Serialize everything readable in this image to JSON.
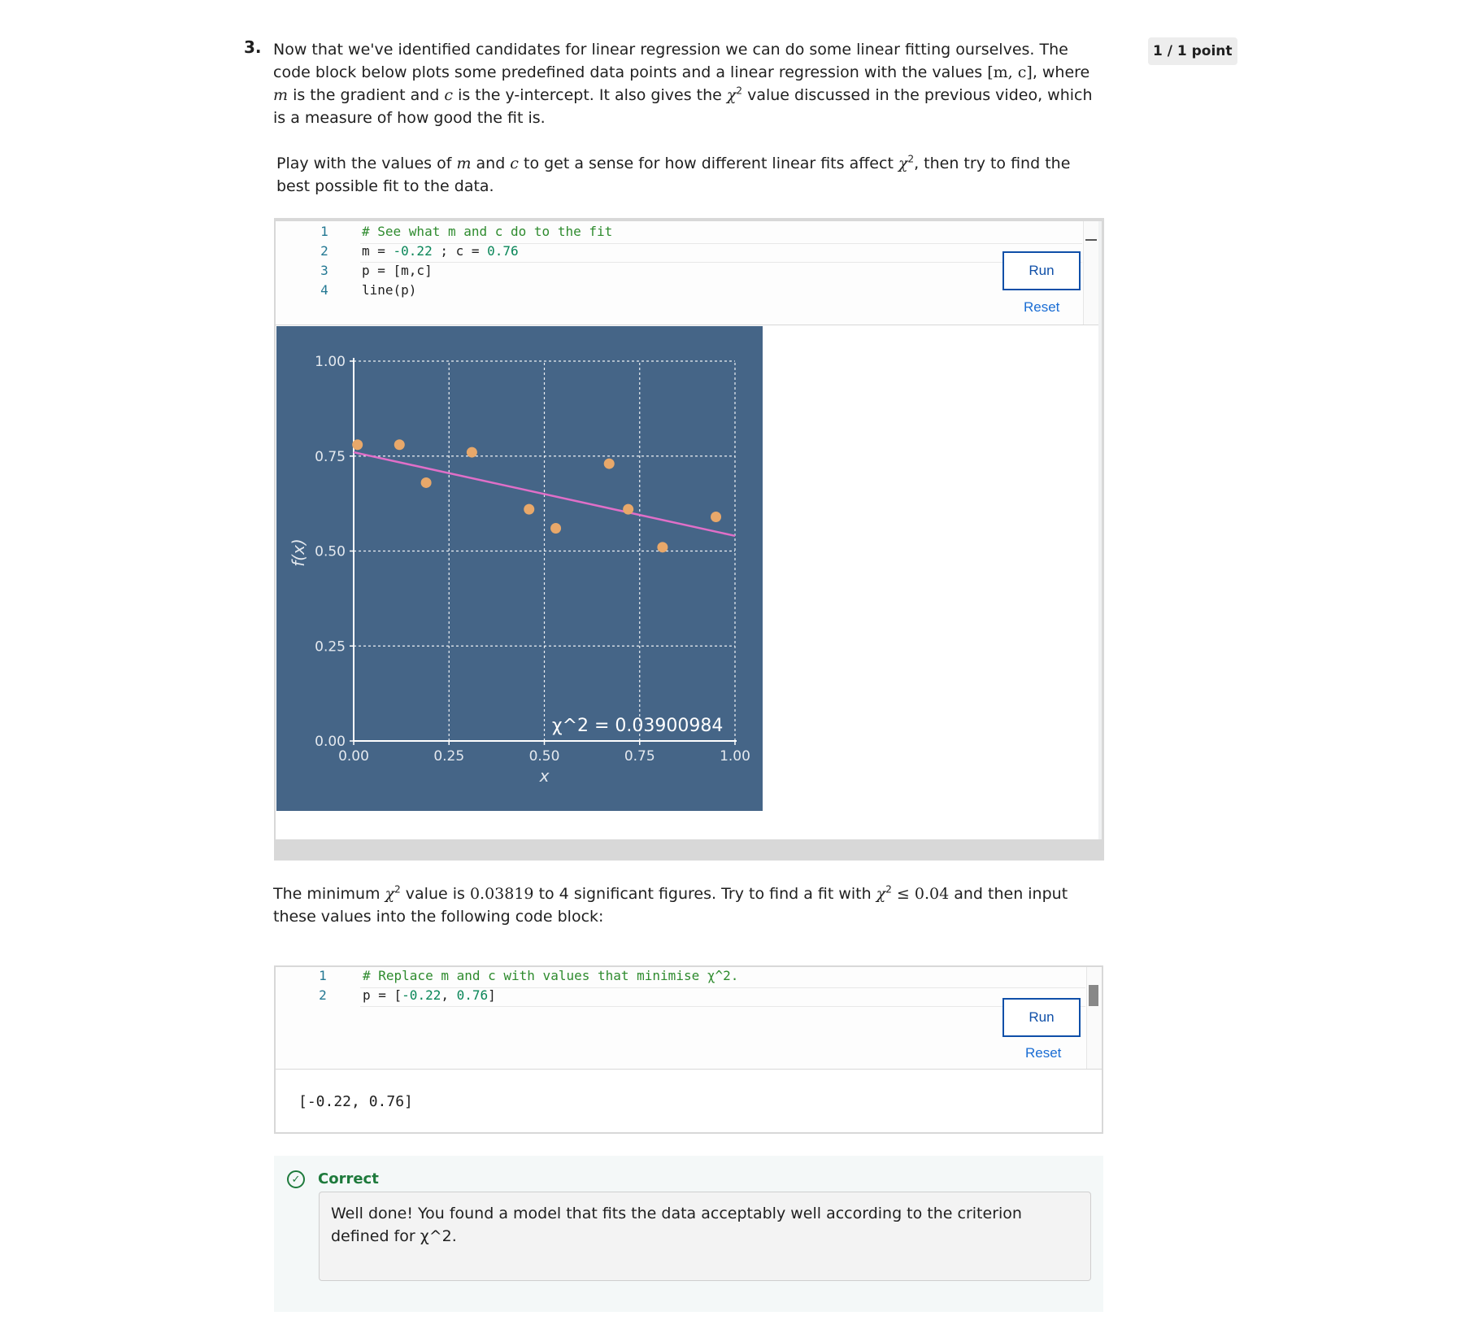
{
  "question": {
    "number": "3.",
    "points": "1 / 1 point",
    "p1_a": "Now that we've identified candidates for linear regression we can do some linear fitting ourselves. The code block below plots some predefined data points and a linear regression with the values ",
    "p1_m1": "[m, c]",
    "p1_b": ", where ",
    "p1_m2": "m",
    "p1_c": " is the gradient and ",
    "p1_m3": "c",
    "p1_d": " is the y-intercept. It also gives the ",
    "p1_chi": "χ",
    "p1_sup": "2",
    "p1_e": " value discussed in the previous video, which is a measure of how good the fit is.",
    "p2_a": "Play with the values of ",
    "p2_m": "m",
    "p2_b": " and ",
    "p2_c": "c",
    "p2_d": " to get a sense for how different linear fits affect ",
    "p2_chi": "χ",
    "p2_sup": "2",
    "p2_e": ", then try to find the best possible fit to the data.",
    "p3_a": "The minimum ",
    "p3_chi": "χ",
    "p3_sup": "2",
    "p3_b": " value is ",
    "p3_val": "0.03819",
    "p3_c": " to 4 significant figures. Try to find a fit with ",
    "p3_chi2": "χ",
    "p3_sup2": "2",
    "p3_le": " ≤ 0.04",
    "p3_d": " and then input these values into the following code block:"
  },
  "code1": {
    "line_numbers": [
      "1",
      "2",
      "3",
      "4"
    ],
    "l1": "# See what m and c do to the fit",
    "l2_a": "m = ",
    "l2_b": "-0.22",
    "l2_c": " ; c = ",
    "l2_d": "0.76",
    "l3": "p = [m,c]",
    "l4": "line(p)",
    "run_label": "Run",
    "reset_label": "Reset"
  },
  "code2": {
    "line_numbers": [
      "1",
      "2"
    ],
    "l1": "# Replace m and c with values that minimise χ^2.",
    "l2_a": "p = [",
    "l2_b": "-0.22",
    "l2_c": ", ",
    "l2_d": "0.76",
    "l2_e": "]",
    "run_label": "Run",
    "reset_label": "Reset",
    "output": "[-0.22, 0.76]"
  },
  "feedback": {
    "status": "Correct",
    "message": "Well done! You found a model that fits the data acceptably well according to the criterion defined for χ^2."
  },
  "colors": {
    "plot_bg": "#456587",
    "points": "#e8a86a",
    "line": "#e06fc8",
    "correct": "#1e7a3c",
    "link": "#1a6dd4"
  },
  "chart_data": {
    "type": "scatter",
    "xlabel": "x",
    "ylabel": "f(x)",
    "xlim": [
      0,
      1
    ],
    "ylim": [
      0,
      1
    ],
    "xticks": [
      "0.00",
      "0.25",
      "0.50",
      "0.75",
      "1.00"
    ],
    "yticks": [
      "0.00",
      "0.25",
      "0.50",
      "0.75",
      "1.00"
    ],
    "grid": true,
    "points": {
      "x": [
        0.01,
        0.12,
        0.19,
        0.31,
        0.46,
        0.53,
        0.67,
        0.72,
        0.81,
        0.95
      ],
      "y": [
        0.78,
        0.78,
        0.68,
        0.76,
        0.61,
        0.56,
        0.73,
        0.61,
        0.51,
        0.59
      ]
    },
    "line": {
      "m": -0.22,
      "c": 0.76
    },
    "annotation": "χ^2 = 0.03900984"
  }
}
